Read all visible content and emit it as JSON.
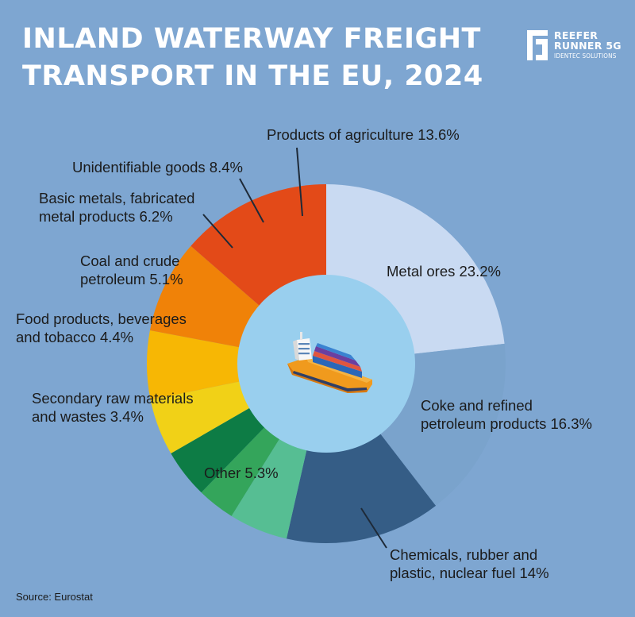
{
  "title": {
    "line1": "INLAND WATERWAY FREIGHT",
    "line2": "TRANSPORT IN THE EU, 2024"
  },
  "logo": {
    "line1": "REEFER",
    "line2": "RUNNER 5G",
    "line3": "IDENTEC SOLUTIONS"
  },
  "source": "Source: Eurostat",
  "colors": {
    "background": "#7ea6d1",
    "inner_circle": "#99cfee",
    "leader_line": "#1e2a38"
  },
  "center_icon": "cargo-ship-icon",
  "chart_data": {
    "type": "donut",
    "slices": [
      {
        "lines": [
          "Metal ores 23.2%"
        ],
        "value": 23.2,
        "color": "#c9daf2"
      },
      {
        "lines": [
          "Coke and refined",
          "petroleum products 16.3%"
        ],
        "value": 16.3,
        "color": "#7aa3cc"
      },
      {
        "lines": [
          "Chemicals, rubber and",
          "plastic, nuclear fuel 14%"
        ],
        "value": 14,
        "color": "#355d86"
      },
      {
        "lines": [
          "Other 5.3%"
        ],
        "value": 5.3,
        "color": "#56be93"
      },
      {
        "lines": [
          "Secondary raw materials",
          "and wastes 3.4%"
        ],
        "value": 3.4,
        "color": "#34a55b"
      },
      {
        "lines": [
          "Food products, beverages",
          "and tobacco 4.4%"
        ],
        "value": 4.4,
        "color": "#0d7c45"
      },
      {
        "lines": [
          "Coal and crude",
          "petroleum 5.1%"
        ],
        "value": 5.1,
        "color": "#f1d117"
      },
      {
        "lines": [
          "Basic metals, fabricated",
          "metal products 6.2%"
        ],
        "value": 6.2,
        "color": "#f7b704"
      },
      {
        "lines": [
          "Unidentifiable goods 8.4%"
        ],
        "value": 8.4,
        "color": "#f08208"
      },
      {
        "lines": [
          "Products of agriculture 13.6%"
        ],
        "value": 13.6,
        "color": "#e34a18"
      }
    ]
  }
}
